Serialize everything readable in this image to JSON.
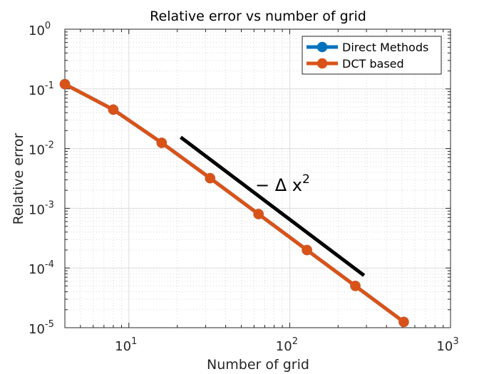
{
  "chart_data": {
    "type": "line",
    "title": "Relative error vs number of grid",
    "xlabel": "Number of grid",
    "ylabel": "Relative error",
    "xscale": "log",
    "yscale": "log",
    "xlim": [
      4,
      1000
    ],
    "ylim": [
      1e-05,
      1
    ],
    "grid": "on (major and minor)",
    "legend_placement": "top-right",
    "x_ticks": [
      {
        "base": "10",
        "exp": "1",
        "value": 10
      },
      {
        "base": "10",
        "exp": "2",
        "value": 100
      },
      {
        "base": "10",
        "exp": "3",
        "value": 1000
      }
    ],
    "y_ticks": [
      {
        "base": "10",
        "exp": "-5",
        "value": 1e-05
      },
      {
        "base": "10",
        "exp": "-4",
        "value": 0.0001
      },
      {
        "base": "10",
        "exp": "-3",
        "value": 0.001
      },
      {
        "base": "10",
        "exp": "-2",
        "value": 0.01
      },
      {
        "base": "10",
        "exp": "-1",
        "value": 0.1
      },
      {
        "base": "10",
        "exp": "0",
        "value": 1
      }
    ],
    "x": [
      4,
      8,
      16,
      32,
      64,
      128,
      256,
      512
    ],
    "series": [
      {
        "name": "Direct Methods",
        "color": "#0072BD",
        "values": [
          0.12,
          0.045,
          0.0125,
          0.0032,
          0.0008,
          0.0002,
          5e-05,
          1.25e-05
        ]
      },
      {
        "name": "DCT based",
        "color": "#D95319",
        "values": [
          0.12,
          0.045,
          0.0125,
          0.0032,
          0.0008,
          0.0002,
          5e-05,
          1.25e-05
        ]
      }
    ],
    "reference_line": {
      "color": "#000000",
      "x": [
        21,
        290
      ],
      "y": [
        0.0155,
        7.5e-05
      ],
      "label_prefix": "−",
      "label_symbol": "Δ",
      "label_var": "x",
      "label_sup": "2"
    }
  }
}
